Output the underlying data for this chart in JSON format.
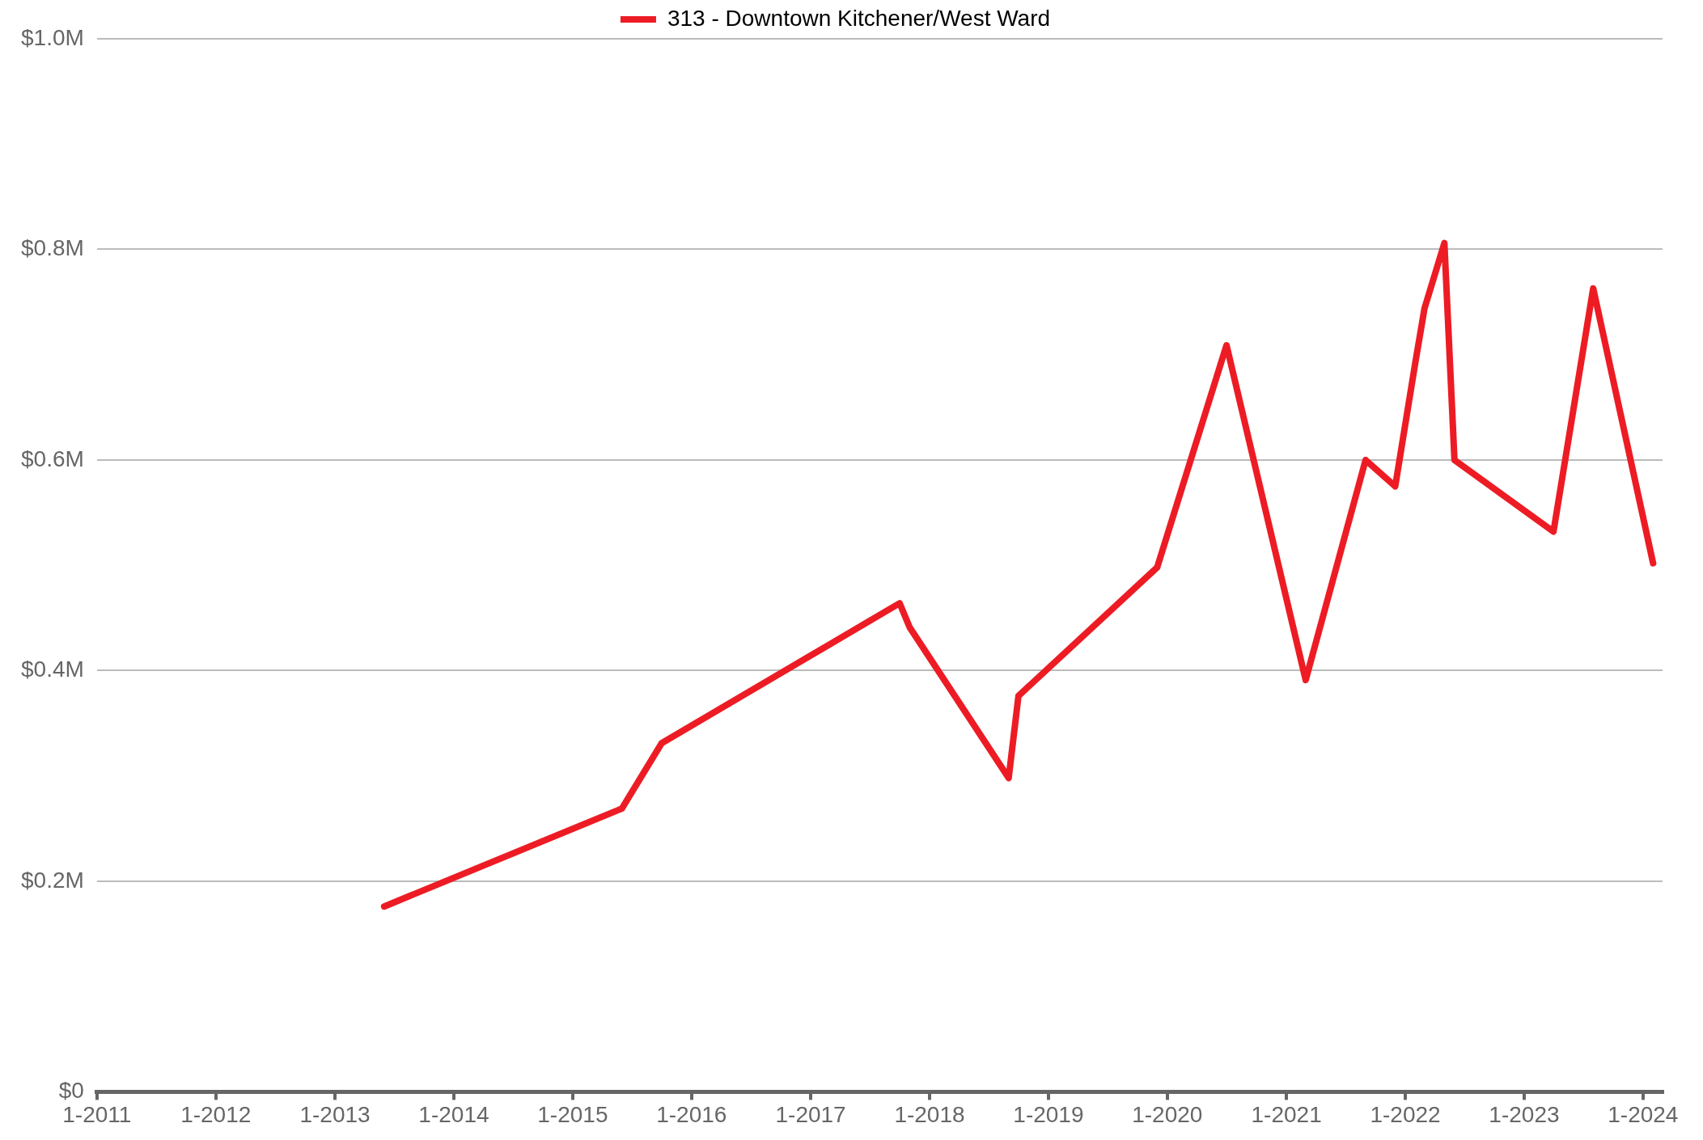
{
  "chart_data": {
    "type": "line",
    "legend": "top",
    "grid": "y",
    "marker": "none",
    "line_style": "solid",
    "x": [
      "2013-06",
      "2015-06",
      "2015-10",
      "2017-10",
      "2017-11",
      "2018-09",
      "2018-10",
      "2019-12",
      "2020-07",
      "2021-03",
      "2021-09",
      "2021-12",
      "2022-02",
      "2022-03",
      "2022-05",
      "2022-06",
      "2023-04",
      "2023-08",
      "2024-02"
    ],
    "series": [
      {
        "name": "313 - Downtown Kitchener/West Ward",
        "color": "#ed1c24",
        "values": [
          0.176,
          0.269,
          0.331,
          0.464,
          0.441,
          0.298,
          0.376,
          0.498,
          0.709,
          0.391,
          0.6,
          0.575,
          0.693,
          0.744,
          0.806,
          0.6,
          0.532,
          0.763,
          0.502
        ]
      }
    ],
    "xlim": [
      "2011-01",
      "2024-03"
    ],
    "xticks": [
      {
        "value": "2011-01",
        "label": "1-2011"
      },
      {
        "value": "2012-01",
        "label": "1-2012"
      },
      {
        "value": "2013-01",
        "label": "1-2013"
      },
      {
        "value": "2014-01",
        "label": "1-2014"
      },
      {
        "value": "2015-01",
        "label": "1-2015"
      },
      {
        "value": "2016-01",
        "label": "1-2016"
      },
      {
        "value": "2017-01",
        "label": "1-2017"
      },
      {
        "value": "2018-01",
        "label": "1-2018"
      },
      {
        "value": "2019-01",
        "label": "1-2019"
      },
      {
        "value": "2020-01",
        "label": "1-2020"
      },
      {
        "value": "2021-01",
        "label": "1-2021"
      },
      {
        "value": "2022-01",
        "label": "1-2022"
      },
      {
        "value": "2023-01",
        "label": "1-2023"
      },
      {
        "value": "2024-01",
        "label": "1-2024"
      }
    ],
    "ylim": [
      0,
      1.0
    ],
    "yticks": [
      {
        "value": 0,
        "label": "$0"
      },
      {
        "value": 0.2,
        "label": "$0.2M"
      },
      {
        "value": 0.4,
        "label": "$0.4M"
      },
      {
        "value": 0.6,
        "label": "$0.6M"
      },
      {
        "value": 0.8,
        "label": "$0.8M"
      },
      {
        "value": 1.0,
        "label": "$1.0M"
      }
    ]
  }
}
